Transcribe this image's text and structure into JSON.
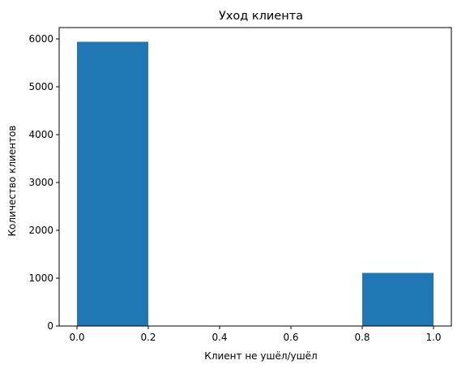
{
  "chart_data": {
    "type": "bar",
    "title": "Уход клиента",
    "xlabel": "Клиент не ушёл/ушёл",
    "ylabel": "Количество клиентов",
    "bins": [
      {
        "x0": 0.0,
        "x1": 0.2,
        "value": 5940
      },
      {
        "x0": 0.2,
        "x1": 0.4,
        "value": 0
      },
      {
        "x0": 0.4,
        "x1": 0.6,
        "value": 0
      },
      {
        "x0": 0.6,
        "x1": 0.8,
        "value": 0
      },
      {
        "x0": 0.8,
        "x1": 1.0,
        "value": 1110
      }
    ],
    "xlim": [
      -0.05,
      1.05
    ],
    "ylim": [
      0,
      6237
    ],
    "x_ticks": [
      {
        "value": 0.0,
        "label": "0.0"
      },
      {
        "value": 0.2,
        "label": "0.2"
      },
      {
        "value": 0.4,
        "label": "0.4"
      },
      {
        "value": 0.6,
        "label": "0.6"
      },
      {
        "value": 0.8,
        "label": "0.8"
      },
      {
        "value": 1.0,
        "label": "1.0"
      }
    ],
    "y_ticks": [
      {
        "value": 0,
        "label": "0"
      },
      {
        "value": 1000,
        "label": "1000"
      },
      {
        "value": 2000,
        "label": "2000"
      },
      {
        "value": 3000,
        "label": "3000"
      },
      {
        "value": 4000,
        "label": "4000"
      },
      {
        "value": 5000,
        "label": "5000"
      },
      {
        "value": 6000,
        "label": "6000"
      }
    ],
    "bar_color": "#1f77b4",
    "grid": false,
    "legend": "none"
  }
}
